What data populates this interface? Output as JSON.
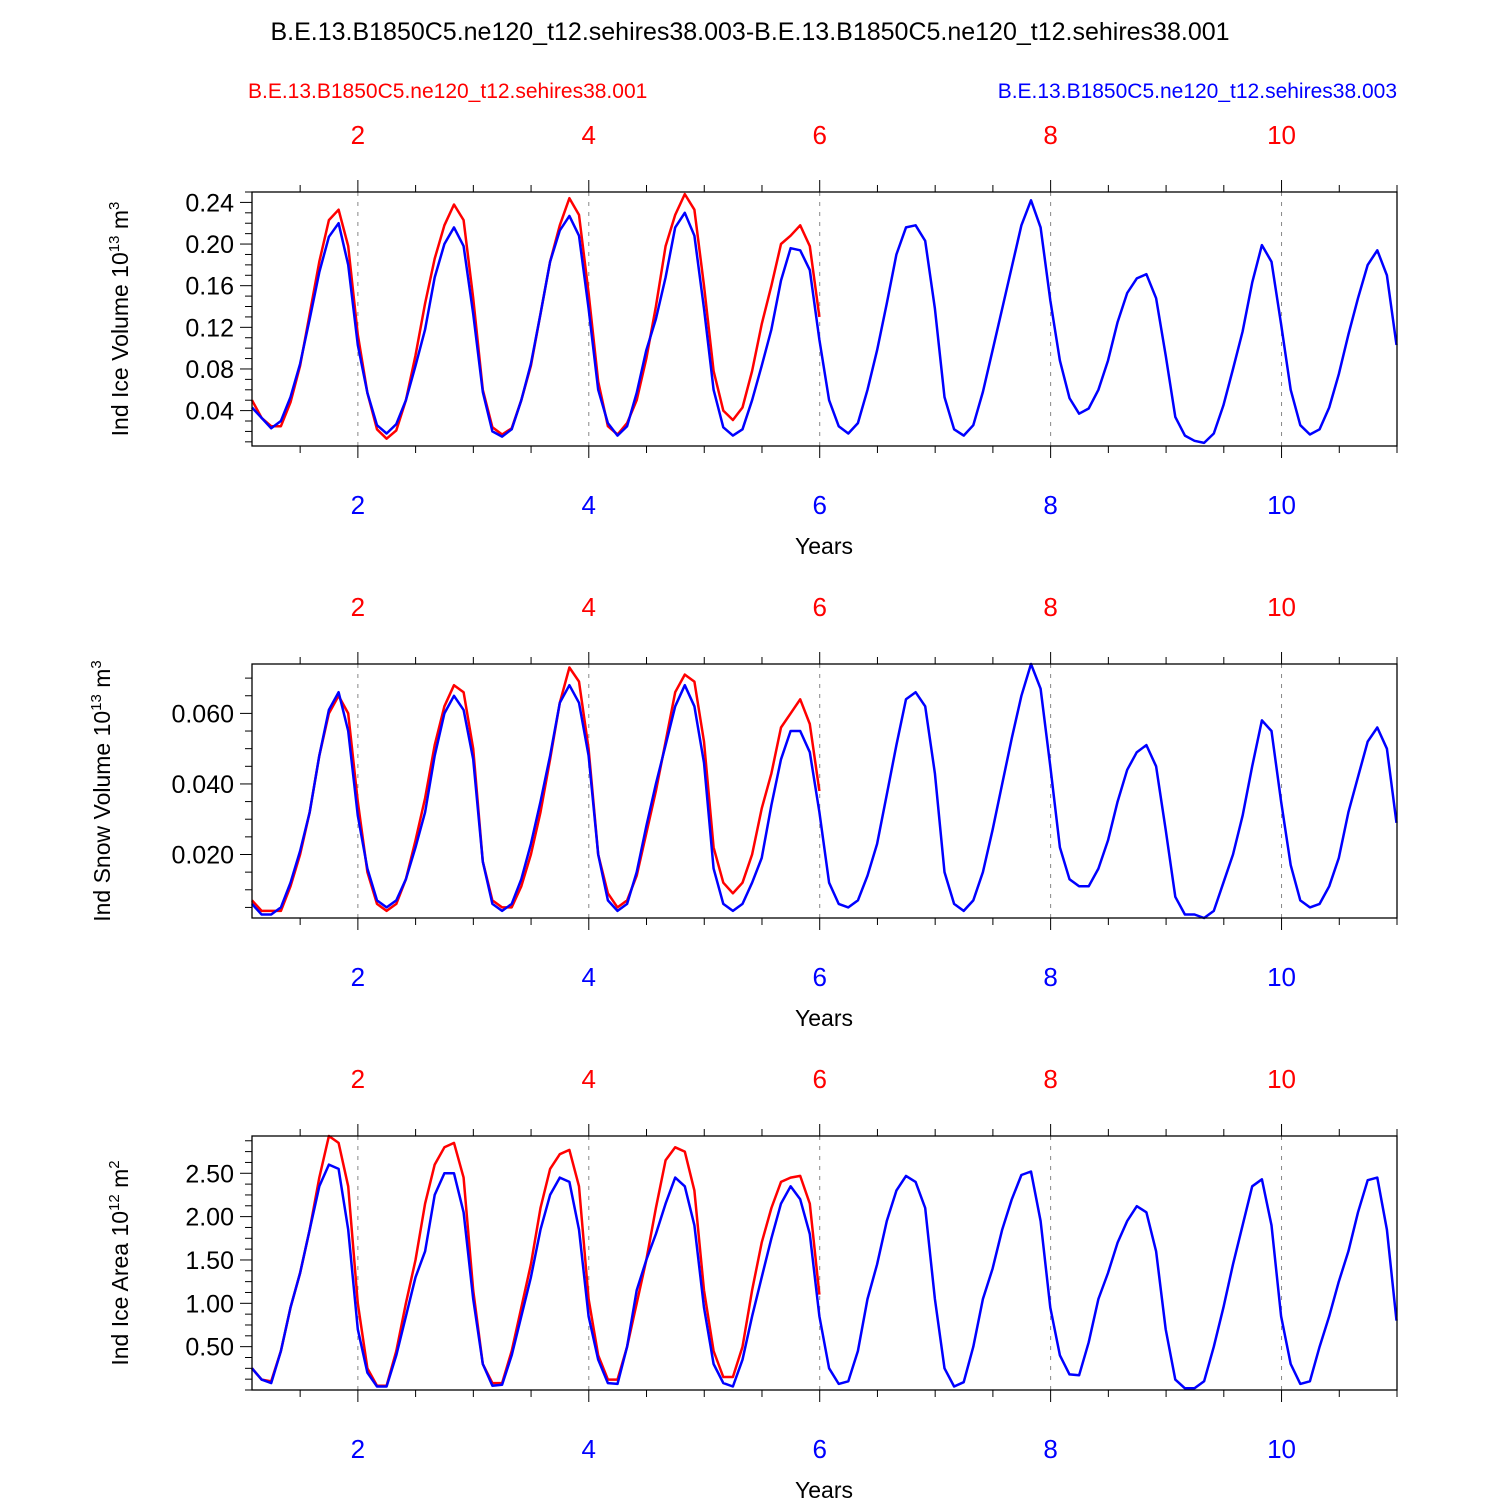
{
  "title": "B.E.13.B1850C5.ne120_t12.sehires38.003-B.E.13.B1850C5.ne120_t12.sehires38.001",
  "legend": {
    "red_label": "B.E.13.B1850C5.ne120_t12.sehires38.001",
    "blue_label": "B.E.13.B1850C5.ne120_t12.sehires38.003"
  },
  "colors": {
    "red": "#ff0000",
    "blue": "#0000ff",
    "axis": "#000000",
    "grid": "#888888"
  },
  "chart_data": [
    {
      "type": "line",
      "ylabel": "Ind Ice Volume 10",
      "ylabel_exp": "13",
      "ylabel_unit": "m",
      "ylabel_unit_exp": "3",
      "xlabel": "Years",
      "xlim": [
        1.083,
        11.0
      ],
      "ylim": [
        0.006,
        0.25
      ],
      "yticks": [
        0.04,
        0.08,
        0.12,
        0.16,
        0.2,
        0.24
      ],
      "ytick_labels": [
        "0.04",
        "0.08",
        "0.12",
        "0.16",
        "0.20",
        "0.24"
      ],
      "xticks": [
        2,
        4,
        6,
        8,
        10
      ],
      "xtick_labels": [
        "2",
        "4",
        "6",
        "8",
        "10"
      ],
      "x_start": 1.083,
      "x_step": 0.0833,
      "series": [
        {
          "color": "red",
          "values": [
            0.05,
            0.033,
            0.025,
            0.025,
            0.048,
            0.083,
            0.133,
            0.183,
            0.223,
            0.233,
            0.198,
            0.113,
            0.057,
            0.022,
            0.013,
            0.021,
            0.05,
            0.093,
            0.143,
            0.186,
            0.218,
            0.238,
            0.223,
            0.148,
            0.06,
            0.024,
            0.017,
            0.023,
            0.05,
            0.083,
            0.133,
            0.183,
            0.218,
            0.244,
            0.228,
            0.153,
            0.068,
            0.025,
            0.017,
            0.028,
            0.05,
            0.09,
            0.14,
            0.198,
            0.228,
            0.248,
            0.233,
            0.16,
            0.078,
            0.04,
            0.031,
            0.043,
            0.078,
            0.123,
            0.16,
            0.2,
            0.208,
            0.218,
            0.198,
            0.13
          ]
        },
        {
          "color": "blue",
          "values": [
            0.043,
            0.033,
            0.023,
            0.03,
            0.053,
            0.085,
            0.128,
            0.173,
            0.207,
            0.22,
            0.18,
            0.103,
            0.057,
            0.026,
            0.018,
            0.027,
            0.05,
            0.083,
            0.118,
            0.168,
            0.2,
            0.216,
            0.198,
            0.133,
            0.058,
            0.02,
            0.015,
            0.022,
            0.05,
            0.085,
            0.133,
            0.183,
            0.213,
            0.227,
            0.208,
            0.138,
            0.06,
            0.028,
            0.016,
            0.025,
            0.057,
            0.098,
            0.128,
            0.168,
            0.216,
            0.23,
            0.208,
            0.138,
            0.06,
            0.024,
            0.016,
            0.022,
            0.05,
            0.083,
            0.118,
            0.165,
            0.196,
            0.194,
            0.175,
            0.108,
            0.05,
            0.025,
            0.018,
            0.028,
            0.06,
            0.098,
            0.143,
            0.19,
            0.216,
            0.218,
            0.203,
            0.138,
            0.053,
            0.022,
            0.016,
            0.026,
            0.058,
            0.098,
            0.138,
            0.178,
            0.218,
            0.242,
            0.216,
            0.146,
            0.088,
            0.052,
            0.037,
            0.042,
            0.06,
            0.088,
            0.125,
            0.153,
            0.167,
            0.171,
            0.148,
            0.093,
            0.034,
            0.016,
            0.011,
            0.009,
            0.018,
            0.045,
            0.08,
            0.116,
            0.163,
            0.199,
            0.183,
            0.123,
            0.06,
            0.026,
            0.017,
            0.022,
            0.043,
            0.075,
            0.113,
            0.148,
            0.18,
            0.194,
            0.17,
            0.103
          ]
        }
      ]
    },
    {
      "type": "line",
      "ylabel": "Ind Snow Volume 10",
      "ylabel_exp": "13",
      "ylabel_unit": "m",
      "ylabel_unit_exp": "3",
      "xlabel": "Years",
      "xlim": [
        1.083,
        11.0
      ],
      "ylim": [
        0.002,
        0.074
      ],
      "yticks": [
        0.02,
        0.04,
        0.06
      ],
      "ytick_labels": [
        "0.020",
        "0.040",
        "0.060"
      ],
      "xticks": [
        2,
        4,
        6,
        8,
        10
      ],
      "xtick_labels": [
        "2",
        "4",
        "6",
        "8",
        "10"
      ],
      "x_start": 1.083,
      "x_step": 0.0833,
      "series": [
        {
          "color": "red",
          "values": [
            0.007,
            0.004,
            0.004,
            0.004,
            0.011,
            0.02,
            0.032,
            0.048,
            0.06,
            0.065,
            0.06,
            0.035,
            0.015,
            0.006,
            0.004,
            0.006,
            0.013,
            0.024,
            0.036,
            0.051,
            0.062,
            0.068,
            0.066,
            0.05,
            0.018,
            0.007,
            0.005,
            0.005,
            0.011,
            0.02,
            0.032,
            0.047,
            0.063,
            0.073,
            0.069,
            0.05,
            0.02,
            0.009,
            0.005,
            0.007,
            0.014,
            0.026,
            0.038,
            0.052,
            0.066,
            0.071,
            0.069,
            0.052,
            0.022,
            0.012,
            0.009,
            0.012,
            0.02,
            0.033,
            0.043,
            0.056,
            0.06,
            0.064,
            0.057,
            0.038
          ]
        },
        {
          "color": "blue",
          "values": [
            0.006,
            0.003,
            0.003,
            0.005,
            0.012,
            0.021,
            0.032,
            0.048,
            0.061,
            0.066,
            0.055,
            0.031,
            0.016,
            0.007,
            0.005,
            0.007,
            0.013,
            0.022,
            0.032,
            0.048,
            0.06,
            0.065,
            0.061,
            0.047,
            0.018,
            0.006,
            0.004,
            0.006,
            0.013,
            0.023,
            0.035,
            0.048,
            0.063,
            0.068,
            0.063,
            0.048,
            0.02,
            0.007,
            0.004,
            0.006,
            0.015,
            0.028,
            0.04,
            0.051,
            0.062,
            0.068,
            0.062,
            0.046,
            0.016,
            0.006,
            0.004,
            0.006,
            0.012,
            0.019,
            0.034,
            0.047,
            0.055,
            0.055,
            0.049,
            0.032,
            0.012,
            0.006,
            0.005,
            0.007,
            0.014,
            0.023,
            0.037,
            0.051,
            0.064,
            0.066,
            0.062,
            0.043,
            0.015,
            0.006,
            0.004,
            0.007,
            0.015,
            0.027,
            0.04,
            0.053,
            0.065,
            0.074,
            0.067,
            0.045,
            0.022,
            0.013,
            0.011,
            0.011,
            0.016,
            0.024,
            0.035,
            0.044,
            0.049,
            0.051,
            0.045,
            0.027,
            0.008,
            0.003,
            0.003,
            0.002,
            0.004,
            0.012,
            0.02,
            0.031,
            0.045,
            0.058,
            0.055,
            0.035,
            0.017,
            0.007,
            0.005,
            0.006,
            0.011,
            0.019,
            0.032,
            0.042,
            0.052,
            0.056,
            0.05,
            0.029
          ]
        }
      ]
    },
    {
      "type": "line",
      "ylabel": "Ind Ice Area 10",
      "ylabel_exp": "12",
      "ylabel_unit": "m",
      "ylabel_unit_exp": "2",
      "xlabel": "Years",
      "xlim": [
        1.083,
        11.0
      ],
      "ylim": [
        0.0,
        2.93
      ],
      "yticks": [
        0.5,
        1.0,
        1.5,
        2.0,
        2.5
      ],
      "ytick_labels": [
        "0.50",
        "1.00",
        "1.50",
        "2.00",
        "2.50"
      ],
      "xticks": [
        2,
        4,
        6,
        8,
        10
      ],
      "xtick_labels": [
        "2",
        "4",
        "6",
        "8",
        "10"
      ],
      "x_start": 1.083,
      "x_step": 0.0833,
      "series": [
        {
          "color": "red",
          "values": [
            0.25,
            0.12,
            0.1,
            0.45,
            0.95,
            1.35,
            1.85,
            2.45,
            2.93,
            2.85,
            2.35,
            1.0,
            0.25,
            0.05,
            0.05,
            0.45,
            1.0,
            1.5,
            2.15,
            2.6,
            2.8,
            2.85,
            2.45,
            1.15,
            0.3,
            0.08,
            0.08,
            0.45,
            0.95,
            1.45,
            2.1,
            2.55,
            2.72,
            2.77,
            2.35,
            1.05,
            0.4,
            0.12,
            0.12,
            0.5,
            1.0,
            1.5,
            2.1,
            2.65,
            2.8,
            2.75,
            2.3,
            1.15,
            0.45,
            0.15,
            0.15,
            0.5,
            1.15,
            1.7,
            2.1,
            2.4,
            2.45,
            2.47,
            2.15,
            1.1
          ]
        },
        {
          "color": "blue",
          "values": [
            0.25,
            0.12,
            0.08,
            0.45,
            0.95,
            1.35,
            1.85,
            2.35,
            2.6,
            2.55,
            1.85,
            0.7,
            0.2,
            0.04,
            0.04,
            0.4,
            0.85,
            1.3,
            1.6,
            2.25,
            2.5,
            2.5,
            2.05,
            1.05,
            0.3,
            0.05,
            0.06,
            0.4,
            0.85,
            1.3,
            1.85,
            2.25,
            2.45,
            2.4,
            1.85,
            0.85,
            0.35,
            0.08,
            0.07,
            0.5,
            1.15,
            1.5,
            1.8,
            2.15,
            2.45,
            2.35,
            1.9,
            0.95,
            0.3,
            0.08,
            0.04,
            0.35,
            0.85,
            1.3,
            1.75,
            2.15,
            2.35,
            2.2,
            1.8,
            0.85,
            0.25,
            0.07,
            0.1,
            0.45,
            1.05,
            1.45,
            1.95,
            2.3,
            2.47,
            2.4,
            2.1,
            1.05,
            0.25,
            0.04,
            0.09,
            0.5,
            1.05,
            1.4,
            1.85,
            2.2,
            2.48,
            2.52,
            1.95,
            0.95,
            0.4,
            0.18,
            0.17,
            0.55,
            1.05,
            1.35,
            1.7,
            1.95,
            2.12,
            2.05,
            1.6,
            0.7,
            0.12,
            0.02,
            0.02,
            0.1,
            0.5,
            0.95,
            1.45,
            1.9,
            2.35,
            2.43,
            1.9,
            0.85,
            0.3,
            0.07,
            0.1,
            0.5,
            0.85,
            1.25,
            1.6,
            2.05,
            2.42,
            2.45,
            1.85,
            0.8
          ]
        }
      ]
    }
  ]
}
